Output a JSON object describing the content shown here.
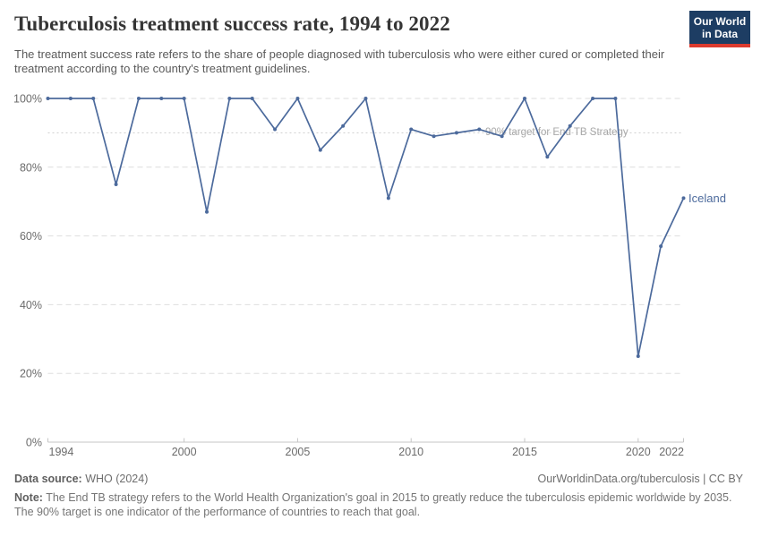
{
  "header": {
    "title": "Tuberculosis treatment success rate, 1994 to 2022",
    "subtitle": "The treatment success rate refers to the share of people diagnosed with tuberculosis who were either cured or completed their treatment according to the country's treatment guidelines.",
    "logo_line1": "Our World",
    "logo_line2": "in Data",
    "logo_bg_color": "#1d3d63",
    "logo_accent_color": "#dc3a2e"
  },
  "chart_data": {
    "type": "line",
    "title": "Tuberculosis treatment success rate, 1994 to 2022",
    "xlabel": "",
    "ylabel": "",
    "xlim": [
      1994,
      2022
    ],
    "ylim": [
      0,
      100
    ],
    "grid": true,
    "x_ticks": [
      1994,
      2000,
      2005,
      2010,
      2015,
      2020,
      2022
    ],
    "x_tick_labels": [
      "1994",
      "2000",
      "2005",
      "2010",
      "2015",
      "2020",
      "2022"
    ],
    "y_ticks": [
      0,
      20,
      40,
      60,
      80,
      100
    ],
    "y_tick_labels": [
      "0%",
      "20%",
      "40%",
      "60%",
      "80%",
      "100%"
    ],
    "series": [
      {
        "name": "Iceland",
        "x": [
          1994,
          1995,
          1996,
          1997,
          1998,
          1999,
          2000,
          2001,
          2002,
          2003,
          2004,
          2005,
          2006,
          2007,
          2008,
          2009,
          2010,
          2011,
          2012,
          2013,
          2014,
          2015,
          2016,
          2017,
          2018,
          2019,
          2020,
          2021,
          2022
        ],
        "values": [
          100,
          100,
          100,
          75,
          100,
          100,
          100,
          67,
          100,
          100,
          91,
          100,
          85,
          92,
          100,
          71,
          91,
          89,
          90,
          91,
          89,
          100,
          83,
          92,
          100,
          100,
          25,
          57,
          71
        ]
      }
    ],
    "end_label": "Iceland",
    "target_line": {
      "value": 90,
      "label": "90% target for End TB Strategy"
    },
    "legend_position": "end-of-line",
    "colors": {
      "series": "#4c6a9c",
      "grid": "#dedede",
      "axis": "#c6c6c6",
      "tick_text": "#6b6b6b",
      "target_line": "#cdcdcd",
      "target_text": "#a8a8a8"
    }
  },
  "footer": {
    "datasource_label": "Data source:",
    "datasource_value": " WHO (2024)",
    "citation": "OurWorldinData.org/tuberculosis | CC BY",
    "note_label": "Note:",
    "note_value": " The End TB strategy refers to the World Health Organization's goal in 2015 to greatly reduce the tuberculosis epidemic worldwide by 2035. The 90% target is one indicator of the performance of countries to reach that goal."
  }
}
